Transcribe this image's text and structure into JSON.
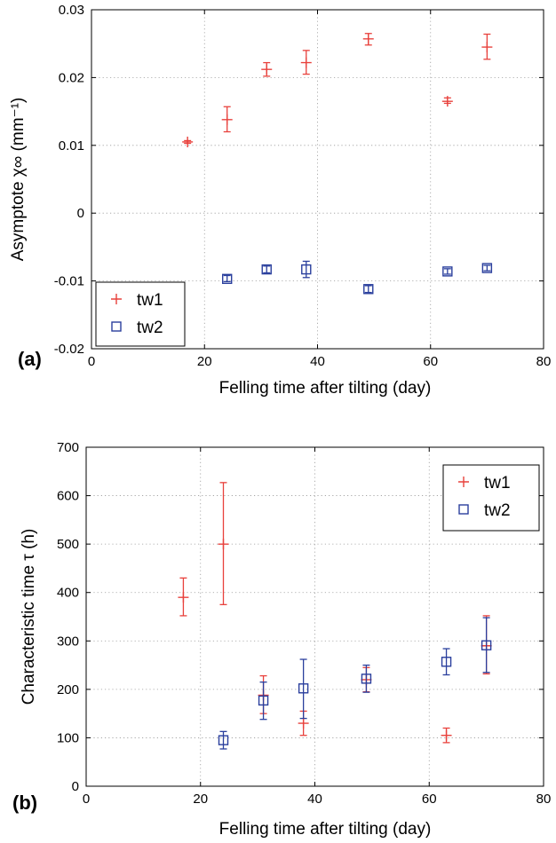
{
  "chart_data": [
    {
      "panel_label": "(a)",
      "type": "scatter",
      "title": "",
      "xlabel": "Felling time after tilting (day)",
      "ylabel": "Asymptote  χ∞  (mm⁻¹)",
      "xlim": [
        0,
        80
      ],
      "ylim": [
        -0.02,
        0.03
      ],
      "xticks": [
        0,
        20,
        40,
        60,
        80
      ],
      "yticks": [
        -0.02,
        -0.01,
        0,
        0.01,
        0.02,
        0.03
      ],
      "xtick_labels": [
        "0",
        "20",
        "40",
        "60",
        "80"
      ],
      "ytick_labels": [
        "-0.02",
        "-0.01",
        "0",
        "0.01",
        "0.02",
        "0.03"
      ],
      "grid": true,
      "legend_position": "bottom-left",
      "series": [
        {
          "name": "tw1",
          "marker": "plus",
          "color": "#e8413c",
          "x": [
            17,
            24,
            31,
            38,
            49,
            63,
            70
          ],
          "y": [
            0.0105,
            0.0138,
            0.0212,
            0.0222,
            0.0257,
            0.0165,
            0.0245
          ],
          "err_low": [
            0.0103,
            0.012,
            0.0202,
            0.0205,
            0.0248,
            0.0162,
            0.0227
          ],
          "err_high": [
            0.0107,
            0.0157,
            0.0222,
            0.024,
            0.0265,
            0.017,
            0.0264
          ]
        },
        {
          "name": "tw2",
          "marker": "square",
          "color": "#2a3f9d",
          "x": [
            24,
            31,
            38,
            49,
            63,
            70
          ],
          "y": [
            -0.0097,
            -0.0083,
            -0.0083,
            -0.0112,
            -0.0086,
            -0.0081
          ],
          "err_low": [
            -0.0101,
            -0.0088,
            -0.0095,
            -0.0117,
            -0.009,
            -0.0085
          ],
          "err_high": [
            -0.0092,
            -0.0078,
            -0.0071,
            -0.0107,
            -0.0082,
            -0.0077
          ]
        }
      ]
    },
    {
      "panel_label": "(b)",
      "type": "scatter",
      "title": "",
      "xlabel": "Felling time after tilting (day)",
      "ylabel": "Characteristic time  τ  (h)",
      "xlim": [
        0,
        80
      ],
      "ylim": [
        0,
        700
      ],
      "xticks": [
        0,
        20,
        40,
        60,
        80
      ],
      "yticks": [
        0,
        100,
        200,
        300,
        400,
        500,
        600,
        700
      ],
      "xtick_labels": [
        "0",
        "20",
        "40",
        "60",
        "80"
      ],
      "ytick_labels": [
        "0",
        "100",
        "200",
        "300",
        "400",
        "500",
        "600",
        "700"
      ],
      "grid": true,
      "legend_position": "top-right",
      "series": [
        {
          "name": "tw1",
          "marker": "plus",
          "color": "#e8413c",
          "x": [
            17,
            24,
            31,
            38,
            49,
            63,
            70
          ],
          "y": [
            390,
            500,
            188,
            130,
            220,
            105,
            290
          ],
          "err_low": [
            352,
            375,
            150,
            105,
            195,
            90,
            232
          ],
          "err_high": [
            430,
            627,
            228,
            155,
            245,
            120,
            352
          ]
        },
        {
          "name": "tw2",
          "marker": "square",
          "color": "#2a3f9d",
          "x": [
            24,
            31,
            38,
            49,
            63,
            70
          ],
          "y": [
            95,
            177,
            202,
            222,
            257,
            291
          ],
          "err_low": [
            77,
            138,
            140,
            194,
            230,
            235
          ],
          "err_high": [
            113,
            215,
            262,
            250,
            284,
            348
          ]
        }
      ]
    }
  ]
}
